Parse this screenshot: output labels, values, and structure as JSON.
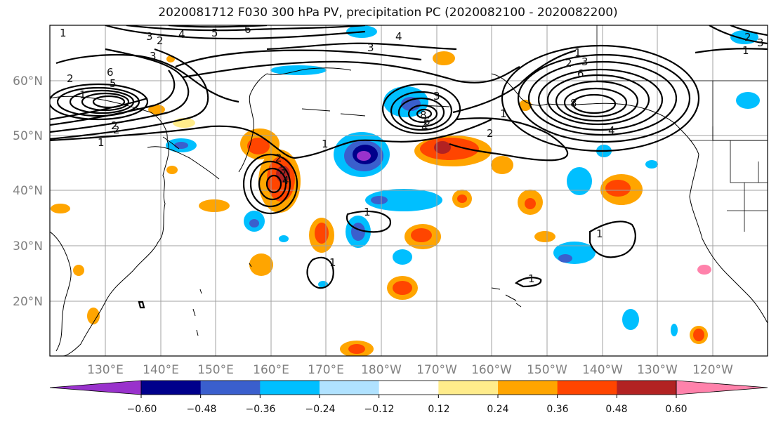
{
  "title": "2020081712 F030 300 hPa PV, precipitation PC (2020082100 - 2020082200)",
  "lat_labels": [
    "60°N",
    "50°N",
    "40°N",
    "30°N",
    "20°N"
  ],
  "lon_labels": [
    "130°E",
    "140°E",
    "150°E",
    "160°E",
    "170°E",
    "180°W",
    "170°W",
    "160°W",
    "150°W",
    "140°W",
    "130°W",
    "120°W"
  ],
  "colorbar": {
    "colors": [
      "#9932cc",
      "#00008b",
      "#3a5fcd",
      "#00bfff",
      "#b0e2ff",
      "#ffffff",
      "#ffec8b",
      "#ffa500",
      "#ff4500",
      "#b22222",
      "#ff82ab"
    ],
    "tick_labels": [
      "−0.60",
      "−0.48",
      "−0.36",
      "−0.24",
      "−0.12",
      "0.12",
      "0.24",
      "0.36",
      "0.48",
      "0.60"
    ]
  },
  "contour_labels": [
    "3",
    "4",
    "5",
    "6",
    "3",
    "2",
    "4",
    "3",
    "2",
    "1",
    "6",
    "2",
    "5",
    "2",
    "1",
    "1",
    "2",
    "3",
    "4",
    "1",
    "1",
    "1",
    "1",
    "2",
    "6",
    "3",
    "8",
    "4",
    "1",
    "2",
    "8",
    "6",
    "3",
    "4",
    "1",
    "1",
    "2",
    "3",
    "1"
  ],
  "colors": {
    "frame": "#000000",
    "grid": "#a0a0a0",
    "contour": "#000000"
  }
}
